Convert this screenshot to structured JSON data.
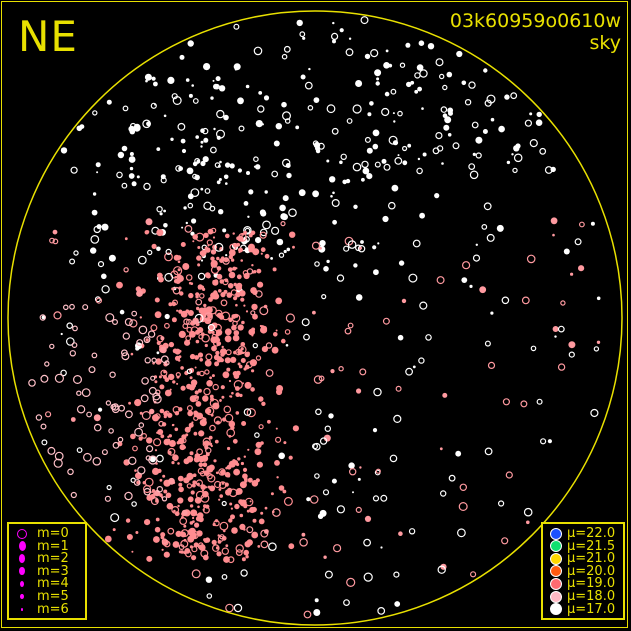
{
  "header": {
    "direction": "NE",
    "frame_id": "03k60959o0610w",
    "image_type": "sky"
  },
  "colors": {
    "frame": "#e8e000",
    "background": "#000000",
    "horizon_circle": "#e8e000"
  },
  "chart_data": {
    "type": "scatter",
    "title": "",
    "legend_magnitude": [
      {
        "label": "m=0",
        "marker": "open-circle"
      },
      {
        "label": "m=1",
        "marker": "filled-circle"
      },
      {
        "label": "m=2",
        "marker": "filled-circle"
      },
      {
        "label": "m=3",
        "marker": "filled-circle"
      },
      {
        "label": "m=4",
        "marker": "filled-circle"
      },
      {
        "label": "m=5",
        "marker": "filled-circle"
      },
      {
        "label": "m=6",
        "marker": "filled-circle"
      }
    ],
    "legend_magnitude_color": "#ff00ff",
    "legend_mu": [
      {
        "label": "μ=22.0",
        "color": "#1a50ff"
      },
      {
        "label": "μ=21.5",
        "color": "#10e070"
      },
      {
        "label": "μ=21.0",
        "color": "#ffd800"
      },
      {
        "label": "μ=20.0",
        "color": "#ff5a10"
      },
      {
        "label": "μ=19.0",
        "color": "#ff6a70"
      },
      {
        "label": "μ=18.0",
        "color": "#ffb8c4"
      },
      {
        "label": "μ=17.0",
        "color": "#ffffff"
      }
    ],
    "legend_placement": [
      "bottom-left",
      "bottom-right"
    ]
  }
}
